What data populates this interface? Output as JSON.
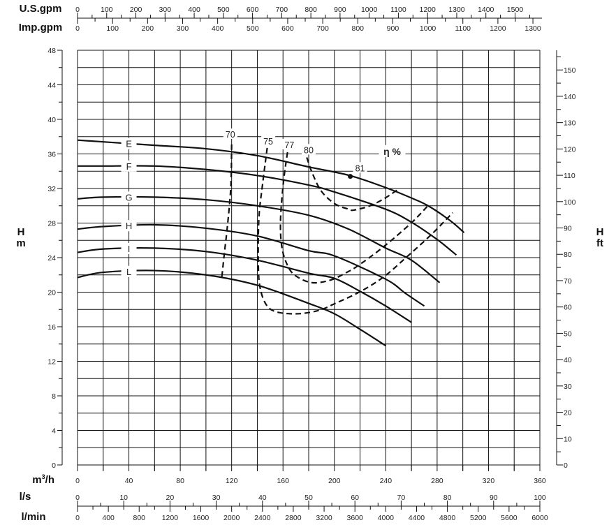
{
  "chart_data": {
    "type": "line",
    "grid": true,
    "xlim": [
      0,
      360
    ],
    "ylim": [
      0,
      48
    ],
    "axes": {
      "left": {
        "name": "H",
        "unit": "m",
        "ticks": [
          "0",
          "4",
          "8",
          "12",
          "16",
          "20",
          "24",
          "28",
          "32",
          "36",
          "40",
          "44",
          "48"
        ]
      },
      "right": {
        "name": "H",
        "unit": "ft",
        "ticks": [
          "0",
          "10",
          "20",
          "30",
          "40",
          "50",
          "60",
          "70",
          "80",
          "90",
          "100",
          "110",
          "120",
          "130",
          "140",
          "150"
        ]
      },
      "bottom_m3h": {
        "name": "m³/h",
        "ticks": [
          "0",
          "40",
          "80",
          "120",
          "160",
          "200",
          "240",
          "280",
          "320",
          "360"
        ]
      },
      "bottom_ls": {
        "name": "l/s",
        "ticks": [
          "0",
          "10",
          "20",
          "30",
          "40",
          "50",
          "60",
          "70",
          "80",
          "90",
          "100"
        ]
      },
      "bottom_lmin": {
        "name": "l/min",
        "ticks": [
          "0",
          "400",
          "800",
          "1200",
          "1600",
          "2000",
          "2400",
          "2800",
          "3200",
          "3600",
          "4000",
          "4400",
          "4800",
          "5200",
          "5600",
          "6000"
        ]
      },
      "top_usgpm": {
        "name": "U.S.gpm",
        "ticks": [
          "0",
          "100",
          "200",
          "300",
          "400",
          "500",
          "600",
          "700",
          "800",
          "900",
          "1000",
          "1100",
          "1200",
          "1300",
          "1400",
          "1500"
        ]
      },
      "top_impgpm": {
        "name": "Imp.gpm",
        "ticks": [
          "0",
          "100",
          "200",
          "300",
          "400",
          "500",
          "600",
          "700",
          "800",
          "900",
          "1000",
          "1100",
          "1200",
          "1300"
        ]
      }
    },
    "head_curves": [
      {
        "name": "E",
        "points": [
          [
            0,
            37.6
          ],
          [
            20,
            37.4
          ],
          [
            60,
            37.0
          ],
          [
            100,
            36.6
          ],
          [
            140,
            35.8
          ],
          [
            180,
            34.5
          ],
          [
            212,
            33.5
          ],
          [
            240,
            32.1
          ],
          [
            260,
            30.9
          ],
          [
            273,
            30.0
          ],
          [
            290,
            28.3
          ],
          [
            301,
            26.9
          ]
        ]
      },
      {
        "name": "F",
        "points": [
          [
            0,
            34.6
          ],
          [
            20,
            34.6
          ],
          [
            60,
            34.6
          ],
          [
            100,
            34.2
          ],
          [
            140,
            33.5
          ],
          [
            180,
            32.4
          ],
          [
            200,
            31.6
          ],
          [
            240,
            29.6
          ],
          [
            260,
            28.1
          ],
          [
            280,
            26.1
          ],
          [
            295,
            24.3
          ]
        ]
      },
      {
        "name": "G",
        "points": [
          [
            0,
            30.8
          ],
          [
            20,
            31.0
          ],
          [
            60,
            31.0
          ],
          [
            100,
            30.7
          ],
          [
            140,
            30.0
          ],
          [
            180,
            28.9
          ],
          [
            211,
            27.3
          ],
          [
            240,
            25.1
          ],
          [
            260,
            23.7
          ],
          [
            282,
            21.1
          ]
        ]
      },
      {
        "name": "H",
        "points": [
          [
            0,
            27.3
          ],
          [
            20,
            27.6
          ],
          [
            60,
            27.8
          ],
          [
            100,
            27.4
          ],
          [
            140,
            26.5
          ],
          [
            180,
            24.8
          ],
          [
            200,
            24.2
          ],
          [
            240,
            21.5
          ],
          [
            255,
            19.9
          ],
          [
            270,
            18.4
          ]
        ]
      },
      {
        "name": "I",
        "points": [
          [
            0,
            24.6
          ],
          [
            20,
            25.0
          ],
          [
            60,
            25.1
          ],
          [
            100,
            24.7
          ],
          [
            140,
            23.7
          ],
          [
            180,
            22.2
          ],
          [
            200,
            21.6
          ],
          [
            220,
            20.1
          ],
          [
            240,
            18.4
          ],
          [
            260,
            16.5
          ]
        ]
      },
      {
        "name": "L",
        "points": [
          [
            0,
            21.7
          ],
          [
            20,
            22.3
          ],
          [
            60,
            22.5
          ],
          [
            100,
            22.0
          ],
          [
            140,
            20.8
          ],
          [
            180,
            18.7
          ],
          [
            200,
            17.5
          ],
          [
            220,
            15.7
          ],
          [
            240,
            13.8
          ]
        ]
      }
    ],
    "efficiency_title": "η %",
    "efficiency_curves": [
      {
        "name": "70",
        "label_at": [
          119,
          38.3
        ],
        "points": [
          [
            120.0,
            37.1
          ],
          [
            119.6,
            33.0
          ],
          [
            118.5,
            30.4
          ],
          [
            116.4,
            27.2
          ],
          [
            114.2,
            24.3
          ],
          [
            112.2,
            21.5
          ]
        ]
      },
      {
        "name": "75",
        "label_at": [
          148.5,
          37.5
        ],
        "points": [
          [
            147.7,
            36.7
          ],
          [
            144.1,
            32.5
          ],
          [
            141.2,
            28.5
          ],
          [
            140.8,
            23.1
          ],
          [
            142.3,
            20.4
          ],
          [
            147.2,
            18.5
          ],
          [
            155.3,
            17.7
          ],
          [
            171.7,
            17.5
          ],
          [
            188,
            17.9
          ],
          [
            200.7,
            18.7
          ],
          [
            220.6,
            20.1
          ],
          [
            238.7,
            21.8
          ],
          [
            255,
            23.9
          ],
          [
            275,
            26.6
          ],
          [
            292.2,
            29.2
          ]
        ]
      },
      {
        "name": "77",
        "label_at": [
          165,
          37.1
        ],
        "points": [
          [
            163.5,
            36.2
          ],
          [
            160.4,
            32.8
          ],
          [
            158.1,
            28.5
          ],
          [
            159,
            25.3
          ],
          [
            163.5,
            23.1
          ],
          [
            169.8,
            21.9
          ],
          [
            182.5,
            21.1
          ],
          [
            197,
            21.4
          ],
          [
            209.7,
            22.3
          ],
          [
            218.8,
            23.1
          ],
          [
            238.7,
            25.3
          ],
          [
            260.5,
            28.1
          ],
          [
            274,
            30.2
          ]
        ]
      },
      {
        "name": "80",
        "label_at": [
          180,
          36.5
        ],
        "points": [
          [
            178.5,
            35.6
          ],
          [
            182.5,
            33.9
          ],
          [
            189.8,
            31.7
          ],
          [
            200.7,
            30.2
          ],
          [
            211.5,
            29.6
          ],
          [
            215.2,
            29.5
          ],
          [
            227.8,
            30.0
          ],
          [
            239.6,
            30.9
          ],
          [
            249.6,
            31.9
          ]
        ]
      }
    ],
    "best_efficiency_point": {
      "name": "81",
      "q": 212.4,
      "h": 33.4,
      "label_at": [
        220,
        34.4
      ]
    }
  }
}
